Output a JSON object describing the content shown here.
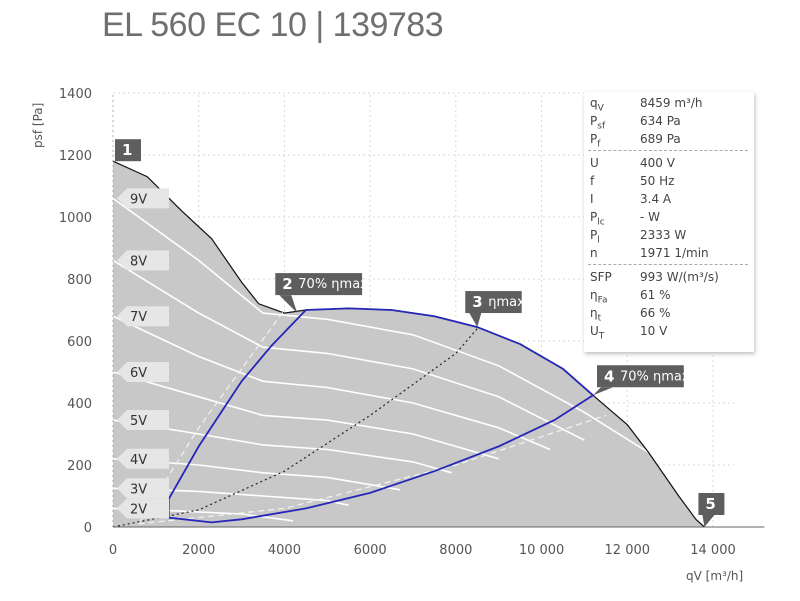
{
  "title": "EL 560 EC 10 | 139783",
  "chart_data": {
    "type": "line",
    "xlabel": "qV [m³/h]",
    "ylabel": "psf [Pa]",
    "xlim": [
      0,
      14500
    ],
    "ylim": [
      0,
      1400
    ],
    "xticks": [
      0,
      2000,
      4000,
      6000,
      8000,
      10000,
      12000,
      14000
    ],
    "xtick_labels": [
      "0",
      "2000",
      "4000",
      "6000",
      "8000",
      "10 000",
      "12 000",
      "14 000"
    ],
    "yticks": [
      0,
      200,
      400,
      600,
      800,
      1000,
      1200,
      1400
    ],
    "ytick_labels": [
      "0",
      "200",
      "400",
      "600",
      "800",
      "1000",
      "1200",
      "1400"
    ],
    "grid": true,
    "envelope": {
      "name": "max",
      "x": [
        0,
        800,
        1600,
        2300,
        3000,
        3400,
        4000,
        4500,
        5500,
        6500,
        7500,
        8500,
        9500,
        10500,
        11200,
        12000,
        12500,
        13200,
        13600,
        13800
      ],
      "y": [
        1180,
        1130,
        1020,
        930,
        790,
        720,
        690,
        700,
        705,
        700,
        680,
        645,
        590,
        510,
        425,
        330,
        240,
        100,
        25,
        0
      ]
    },
    "voltage_curves": [
      {
        "name": "9V",
        "x": [
          0,
          2000,
          3500,
          5000,
          7000,
          9000,
          11000,
          12500
        ],
        "y": [
          1060,
          860,
          690,
          670,
          620,
          520,
          370,
          240
        ]
      },
      {
        "name": "8V",
        "x": [
          0,
          2000,
          3500,
          5000,
          7000,
          9000,
          11000
        ],
        "y": [
          860,
          690,
          580,
          560,
          510,
          420,
          280
        ]
      },
      {
        "name": "7V",
        "x": [
          0,
          2000,
          3500,
          5000,
          7000,
          9000,
          10200
        ],
        "y": [
          680,
          550,
          470,
          450,
          400,
          320,
          250
        ]
      },
      {
        "name": "6V",
        "x": [
          0,
          2000,
          3500,
          5000,
          7000,
          9000
        ],
        "y": [
          500,
          420,
          360,
          345,
          300,
          220
        ]
      },
      {
        "name": "5V",
        "x": [
          0,
          2000,
          3500,
          5000,
          7000,
          7900
        ],
        "y": [
          345,
          300,
          265,
          250,
          210,
          175
        ]
      },
      {
        "name": "4V",
        "x": [
          0,
          2000,
          3500,
          5000,
          6700
        ],
        "y": [
          220,
          200,
          175,
          160,
          120
        ]
      },
      {
        "name": "3V",
        "x": [
          0,
          2000,
          3500,
          5000,
          5500
        ],
        "y": [
          125,
          115,
          100,
          85,
          70
        ]
      },
      {
        "name": "2V",
        "x": [
          0,
          1500,
          3000,
          4200
        ],
        "y": [
          60,
          52,
          42,
          20
        ]
      }
    ],
    "operating_boundary_blue": {
      "x": [
        1300,
        2000,
        3000,
        3700,
        4500,
        5500,
        6500,
        7500,
        8500,
        9500,
        10500,
        11200,
        10300,
        9000,
        7500,
        6000,
        4500,
        3000,
        2300,
        1300
      ],
      "y": [
        90,
        260,
        470,
        585,
        700,
        705,
        700,
        680,
        645,
        590,
        510,
        425,
        345,
        260,
        180,
        110,
        60,
        25,
        15,
        30
      ]
    },
    "eta_max_line": {
      "name": "ηmax",
      "x": [
        0,
        2000,
        4000,
        6000,
        8000,
        8500
      ],
      "y": [
        0,
        55,
        180,
        360,
        560,
        640
      ]
    },
    "eta70_left_line": {
      "x": [
        600,
        2000,
        4000
      ],
      "y": [
        10,
        320,
        700
      ]
    },
    "eta70_right_line": {
      "x": [
        600,
        4000,
        8000,
        11500
      ],
      "y": [
        10,
        60,
        200,
        360
      ]
    },
    "points": [
      {
        "label": "1",
        "text": "",
        "x": 0,
        "y": 1180
      },
      {
        "label": "2",
        "text": "70% ηmax",
        "x": 4300,
        "y": 690
      },
      {
        "label": "3",
        "text": "ηmax",
        "x": 8500,
        "y": 645
      },
      {
        "label": "4",
        "text": "70% ηmax",
        "x": 11200,
        "y": 425
      },
      {
        "label": "5",
        "text": "",
        "x": 13800,
        "y": 0
      }
    ],
    "colors": {
      "fill": "#c8c8c8",
      "blue": "#2626b8",
      "envelope": "#111111",
      "label_box": "#5e5e5e",
      "vlabel_box": "#e6e6e6"
    }
  },
  "infobox": {
    "rows": [
      {
        "sym": "q",
        "sub": "V",
        "value": "8459 m³/h"
      },
      {
        "sym": "P",
        "sub": "sf",
        "value": "634 Pa"
      },
      {
        "sym": "P",
        "sub": "f",
        "value": "689 Pa"
      },
      {
        "sym": "U",
        "sub": "",
        "value": "400 V"
      },
      {
        "sym": "f",
        "sub": "",
        "value": "50 Hz"
      },
      {
        "sym": "I",
        "sub": "",
        "value": "3.4 A"
      },
      {
        "sym": "P",
        "sub": "lc",
        "value": "- W"
      },
      {
        "sym": "P",
        "sub": "l",
        "value": "2333 W"
      },
      {
        "sym": "n",
        "sub": "",
        "value": "1971 1/min"
      },
      {
        "sym": "SFP",
        "sub": "",
        "value": "993 W/(m³/s)"
      },
      {
        "sym": "η",
        "sub": "Fa",
        "value": "61 %"
      },
      {
        "sym": "η",
        "sub": "t",
        "value": "66 %"
      },
      {
        "sym": "U",
        "sub": "T",
        "value": "10 V"
      }
    ]
  }
}
